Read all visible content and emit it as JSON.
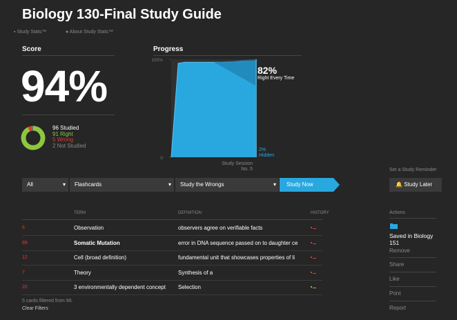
{
  "header": {
    "title": "Biology 130-Final Study Guide",
    "links": [
      "Study Stats™",
      "About Study Stats™"
    ]
  },
  "score": {
    "heading": "Score",
    "value": "94%",
    "breakdown": [
      {
        "value": 96,
        "label": "Studied"
      },
      {
        "value": 91,
        "label": "Right"
      },
      {
        "value": 5,
        "label": "Wrong"
      },
      {
        "value": 2,
        "label": "Not Studied"
      }
    ]
  },
  "progress": {
    "heading": "Progress",
    "ylim": [
      0,
      100
    ],
    "yticks": [
      {
        "value": 100,
        "label": "100%"
      },
      0
    ],
    "values": [
      0,
      96,
      97,
      97,
      97,
      97,
      97,
      97,
      97,
      97,
      98,
      98,
      98
    ],
    "right": {
      "label": "82%",
      "caption": "Right Every Time"
    },
    "hidden": {
      "label": "2%",
      "caption": "Hidden"
    },
    "x_label": [
      "Study Session",
      "No. 5"
    ]
  },
  "toolbar": {
    "filter": "All",
    "mode": "Flashcards",
    "study_set": "Study the Wrongs",
    "action": "Study Now",
    "reminder_label": "Set a Study Reminder",
    "reminder_button": "Study Later"
  },
  "table": {
    "headers": [
      "TERM",
      "DEFINITION",
      "HISTORY"
    ],
    "rows": [
      [
        "6",
        "Observation",
        "observers agree on verifiable facts"
      ],
      [
        "89",
        "Somatic Mutation",
        "error in DNA sequence passed on to daughter ce"
      ],
      [
        "12",
        "Cell (broad definition)",
        "fundamental unit that showcases properties of li"
      ],
      [
        "7",
        "Theory",
        "Synthesis of a"
      ],
      [
        "20",
        "3 environmentally dependent concept",
        "Selection"
      ]
    ],
    "footer": "5 cards filtered from 96.",
    "clear": "Clear Filters"
  },
  "actions": {
    "heading": "Actions",
    "saved": "Saved in Biology 151",
    "remove": "Remove",
    "items": [
      "Share",
      "Like",
      "Print",
      "Report"
    ]
  }
}
